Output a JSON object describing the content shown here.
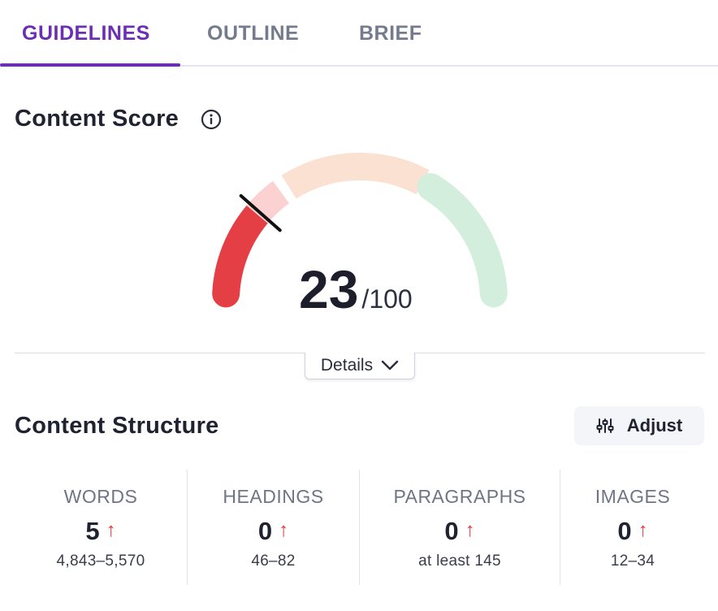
{
  "tabs": [
    {
      "label": "GUIDELINES",
      "active": true
    },
    {
      "label": "OUTLINE",
      "active": false
    },
    {
      "label": "BRIEF",
      "active": false
    }
  ],
  "content_score": {
    "title": "Content Score",
    "score": "23",
    "max": "/100",
    "score_fraction": 0.23,
    "details_label": "Details",
    "colors": {
      "low": "#e43f44",
      "low_light": "#fbd1d1",
      "mid": "#fbe1d2",
      "high": "#d4eedd",
      "accent": "#6b2fb3"
    }
  },
  "content_structure": {
    "title": "Content Structure",
    "adjust_label": "Adjust",
    "stats": [
      {
        "label": "WORDS",
        "value": "5",
        "range": "4,843–5,570"
      },
      {
        "label": "HEADINGS",
        "value": "0",
        "range": "46–82"
      },
      {
        "label": "PARAGRAPHS",
        "value": "0",
        "range": "at least 145"
      },
      {
        "label": "IMAGES",
        "value": "0",
        "range": "12–34"
      }
    ],
    "arrow": "↑"
  }
}
